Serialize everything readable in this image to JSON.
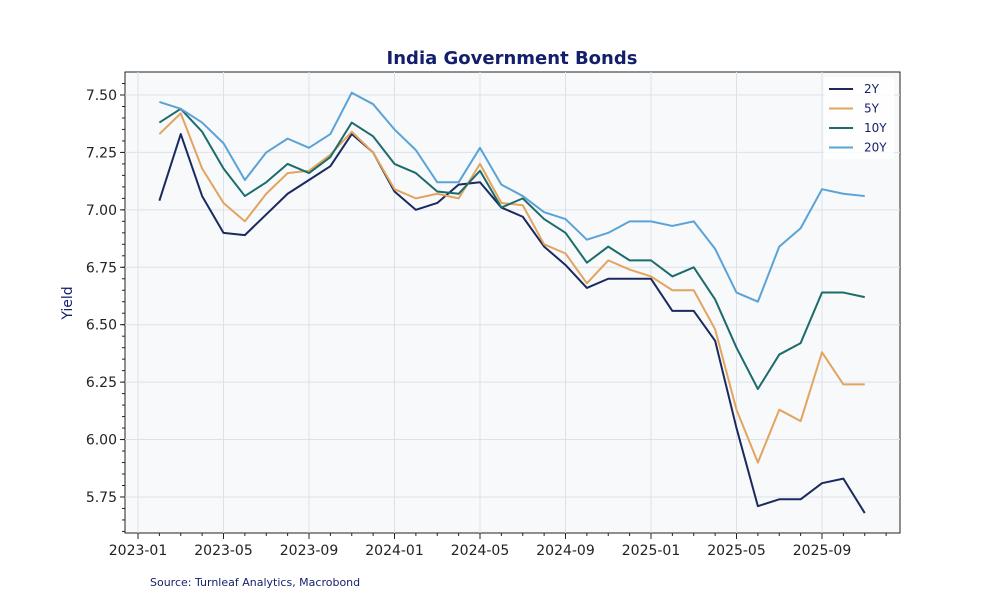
{
  "chart_data": {
    "type": "line",
    "title": "India Government Bonds",
    "xlabel": "",
    "ylabel": "Yield",
    "ylim": [
      5.59,
      7.6
    ],
    "yticks": [
      "5.75",
      "6.00",
      "6.25",
      "6.50",
      "6.75",
      "7.00",
      "7.25",
      "7.50"
    ],
    "xticks": [
      "2023-01",
      "2023-05",
      "2023-09",
      "2024-01",
      "2024-05",
      "2024-09",
      "2025-01",
      "2025-05",
      "2025-09"
    ],
    "grid": true,
    "legend_position": "top-right",
    "x": [
      "2023-02",
      "2023-03",
      "2023-04",
      "2023-05",
      "2023-06",
      "2023-07",
      "2023-08",
      "2023-09",
      "2023-10",
      "2023-11",
      "2023-12",
      "2024-01",
      "2024-02",
      "2024-03",
      "2024-04",
      "2024-05",
      "2024-06",
      "2024-07",
      "2024-08",
      "2024-09",
      "2024-10",
      "2024-11",
      "2024-12",
      "2025-01",
      "2025-02",
      "2025-03",
      "2025-04",
      "2025-05",
      "2025-06",
      "2025-07",
      "2025-08",
      "2025-09",
      "2025-10",
      "2025-11"
    ],
    "series": [
      {
        "name": "2Y",
        "color": "#1b2a5e",
        "values": [
          7.04,
          7.33,
          7.06,
          6.9,
          6.89,
          6.98,
          7.07,
          7.13,
          7.19,
          7.33,
          7.25,
          7.08,
          7.0,
          7.03,
          7.11,
          7.12,
          7.01,
          6.97,
          6.84,
          6.76,
          6.66,
          6.7,
          6.7,
          6.7,
          6.56,
          6.56,
          6.43,
          6.05,
          5.71,
          5.74,
          5.74,
          5.81,
          5.83,
          5.68
        ]
      },
      {
        "name": "5Y",
        "color": "#e3a45e",
        "values": [
          7.33,
          7.42,
          7.18,
          7.03,
          6.95,
          7.07,
          7.16,
          7.17,
          7.24,
          7.34,
          7.25,
          7.09,
          7.05,
          7.07,
          7.05,
          7.2,
          7.03,
          7.02,
          6.85,
          6.81,
          6.68,
          6.78,
          6.74,
          6.71,
          6.65,
          6.65,
          6.48,
          6.13,
          5.9,
          6.13,
          6.08,
          6.38,
          6.24,
          6.24
        ]
      },
      {
        "name": "10Y",
        "color": "#1d6b6b",
        "values": [
          7.38,
          7.44,
          7.34,
          7.18,
          7.06,
          7.12,
          7.2,
          7.16,
          7.23,
          7.38,
          7.32,
          7.2,
          7.16,
          7.08,
          7.07,
          7.17,
          7.01,
          7.05,
          6.96,
          6.9,
          6.77,
          6.84,
          6.78,
          6.78,
          6.71,
          6.75,
          6.61,
          6.4,
          6.22,
          6.37,
          6.42,
          6.64,
          6.64,
          6.62
        ]
      },
      {
        "name": "20Y",
        "color": "#5ba3d6",
        "values": [
          7.47,
          7.44,
          7.38,
          7.29,
          7.13,
          7.25,
          7.31,
          7.27,
          7.33,
          7.51,
          7.46,
          7.35,
          7.26,
          7.12,
          7.12,
          7.27,
          7.11,
          7.06,
          6.99,
          6.96,
          6.87,
          6.9,
          6.95,
          6.95,
          6.93,
          6.95,
          6.83,
          6.64,
          6.6,
          6.84,
          6.92,
          7.09,
          7.07,
          7.06
        ]
      }
    ]
  },
  "source": "Source: Turnleaf Analytics, Macrobond"
}
